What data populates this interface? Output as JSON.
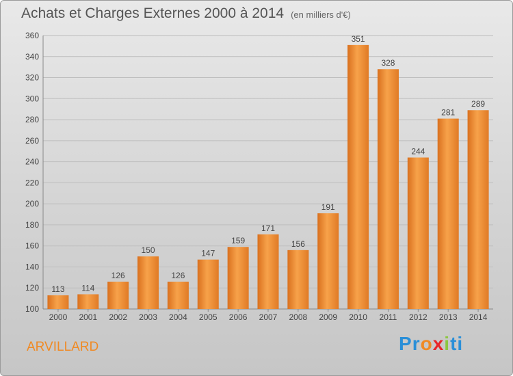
{
  "title": "Achats et Charges Externes 2000 à 2014",
  "unit": "(en milliers d'€)",
  "commune": "ARVILLARD",
  "logo": {
    "letters": [
      "P",
      "r",
      "o",
      "x",
      "i",
      "t",
      "i"
    ],
    "colors": [
      "#2a8fd8",
      "#2a8fd8",
      "#f08a24",
      "#e8262a",
      "#8cc63f",
      "#2a8fd8",
      "#2a8fd8"
    ]
  },
  "colors": {
    "bar_light": "#f7a24a",
    "bar_dark": "#d9701e",
    "accent": "#f08a24"
  },
  "chart_data": {
    "type": "bar",
    "categories": [
      "2000",
      "2001",
      "2002",
      "2003",
      "2004",
      "2005",
      "2006",
      "2007",
      "2008",
      "2009",
      "2010",
      "2011",
      "2012",
      "2013",
      "2014"
    ],
    "values": [
      113,
      114,
      126,
      150,
      126,
      147,
      159,
      171,
      156,
      191,
      351,
      328,
      244,
      281,
      289
    ],
    "ylim": [
      100,
      360
    ],
    "yticks": [
      100,
      120,
      140,
      160,
      180,
      200,
      220,
      240,
      260,
      280,
      300,
      320,
      340,
      360
    ],
    "grid": true
  }
}
